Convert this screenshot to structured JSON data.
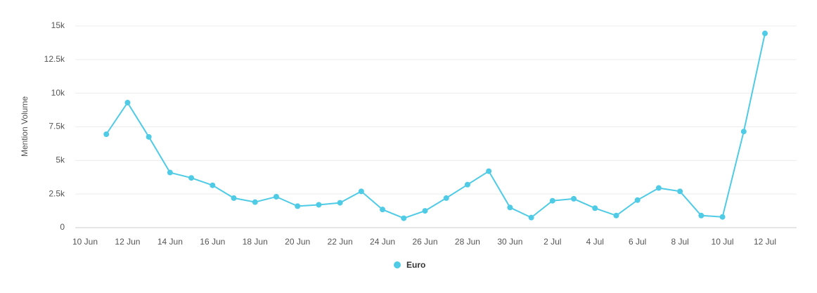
{
  "chart_data": {
    "type": "line",
    "y_label": "Mention Volume",
    "categories": [
      "10 Jun",
      null,
      "12 Jun",
      null,
      "14 Jun",
      null,
      "16 Jun",
      null,
      "18 Jun",
      null,
      "20 Jun",
      null,
      "22 Jun",
      null,
      "24 Jun",
      null,
      "26 Jun",
      null,
      "28 Jun",
      null,
      "30 Jun",
      null,
      "2 Jul",
      null,
      "4 Jul",
      null,
      "6 Jul",
      null,
      "8 Jul",
      null,
      "10 Jul",
      null,
      "12 Jul"
    ],
    "series": [
      {
        "name": "Euro",
        "color": "#4fcbe6",
        "values": [
          null,
          6950,
          9300,
          6750,
          4100,
          3700,
          3150,
          2200,
          1900,
          2300,
          1600,
          1700,
          1850,
          2700,
          1350,
          700,
          1250,
          2200,
          3200,
          4200,
          1500,
          750,
          2000,
          2150,
          1450,
          900,
          2050,
          2950,
          2700,
          900,
          800,
          7150,
          14450
        ]
      }
    ],
    "ylim": [
      0,
      15000
    ],
    "yticks": [
      0,
      {
        "value": 2500,
        "label": "2.5k"
      },
      {
        "value": 5000,
        "label": "5k"
      },
      {
        "value": 7500,
        "label": "7.5k"
      },
      {
        "value": 10000,
        "label": "10k"
      },
      {
        "value": 12500,
        "label": "12.5k"
      },
      {
        "value": 15000,
        "label": "15k"
      }
    ],
    "grid": true,
    "legend": "bottom"
  }
}
